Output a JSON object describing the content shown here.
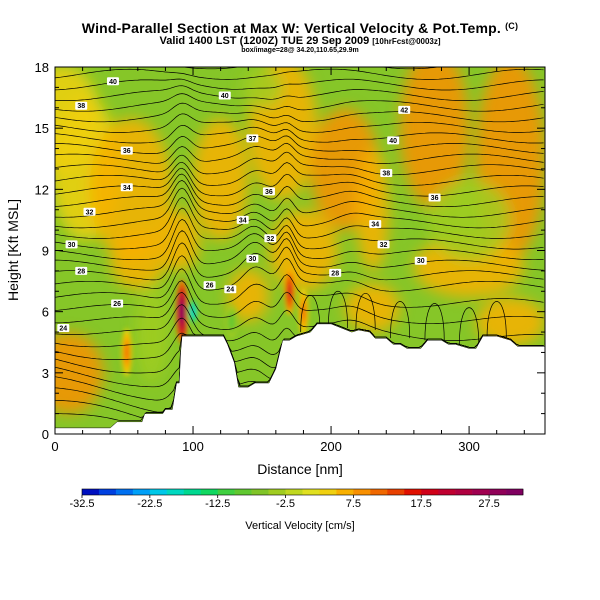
{
  "titles": {
    "main": "Wind-Parallel Section at Max W: Vertical Velocity & Pot.Temp.",
    "copyright": "(C)",
    "valid": "Valid 1400 LST (1200Z) TUE 29 Sep 2009",
    "forecast": "[10hrFcst@0003z]",
    "location": "box/image=28@ 34.20,110.65,29.9m"
  },
  "chart_data": {
    "type": "heatmap",
    "subtype": "vertical cross-section with isentropes",
    "xlabel": "Distance [nm]",
    "ylabel": "Height [Kft MSL]",
    "xlim": [
      0,
      355
    ],
    "ylim": [
      0,
      18
    ],
    "x_ticks": [
      0,
      100,
      200,
      300
    ],
    "y_ticks": [
      0,
      3,
      6,
      9,
      12,
      15,
      18
    ],
    "x_tick_labels": [
      "0",
      "100",
      "200",
      "300"
    ],
    "y_tick_labels": [
      "0",
      "3",
      "6",
      "9",
      "12",
      "15",
      "18"
    ],
    "colorbar": {
      "label": "Vertical Velocity [cm/s]",
      "min": -32.5,
      "max": 32.5,
      "step": 2.5,
      "tick_values": [
        -32.5,
        -22.5,
        -12.5,
        -2.5,
        7.5,
        17.5,
        27.5
      ],
      "tick_labels": [
        "-32.5",
        "-22.5",
        "-12.5",
        "-2.5",
        "7.5",
        "17.5",
        "27.5"
      ],
      "colors": [
        "#0010c0",
        "#0040e0",
        "#0070f0",
        "#00a0f8",
        "#00c8e8",
        "#00d8c0",
        "#00d890",
        "#10d860",
        "#40d040",
        "#60c830",
        "#80c428",
        "#a0cc20",
        "#c0d820",
        "#e0e020",
        "#f0d010",
        "#f8b000",
        "#f89000",
        "#f06800",
        "#e84000",
        "#e01000",
        "#d00018",
        "#c00030",
        "#b00040",
        "#a00050",
        "#900058",
        "#800060"
      ]
    },
    "terrain": [
      [
        0,
        0.3
      ],
      [
        40,
        0.3
      ],
      [
        45,
        0.6
      ],
      [
        63,
        0.6
      ],
      [
        65,
        1.0
      ],
      [
        78,
        1.0
      ],
      [
        80,
        1.2
      ],
      [
        85,
        1.2
      ],
      [
        88,
        2.5
      ],
      [
        90,
        2.5
      ],
      [
        91,
        4.0
      ],
      [
        92,
        4.8
      ],
      [
        122,
        4.8
      ],
      [
        125,
        4.4
      ],
      [
        130,
        3.5
      ],
      [
        133,
        2.3
      ],
      [
        140,
        2.3
      ],
      [
        145,
        2.5
      ],
      [
        155,
        2.5
      ],
      [
        160,
        3.2
      ],
      [
        165,
        4.6
      ],
      [
        170,
        4.6
      ],
      [
        175,
        4.8
      ],
      [
        185,
        5.0
      ],
      [
        190,
        5.4
      ],
      [
        200,
        5.4
      ],
      [
        215,
        5.0
      ],
      [
        220,
        5.1
      ],
      [
        228,
        5.0
      ],
      [
        232,
        4.7
      ],
      [
        240,
        4.7
      ],
      [
        245,
        4.4
      ],
      [
        250,
        4.4
      ],
      [
        255,
        4.2
      ],
      [
        265,
        4.2
      ],
      [
        270,
        4.6
      ],
      [
        280,
        4.6
      ],
      [
        285,
        4.4
      ],
      [
        290,
        4.4
      ],
      [
        300,
        4.2
      ],
      [
        305,
        4.2
      ],
      [
        310,
        4.8
      ],
      [
        320,
        4.8
      ],
      [
        330,
        4.6
      ],
      [
        335,
        4.3
      ],
      [
        355,
        4.3
      ]
    ],
    "isentrope_labels": [
      {
        "value": "40",
        "x": 42,
        "y": 17.3
      },
      {
        "value": "38",
        "x": 19,
        "y": 16.1
      },
      {
        "value": "36",
        "x": 52,
        "y": 13.9
      },
      {
        "value": "34",
        "x": 52,
        "y": 12.1
      },
      {
        "value": "32",
        "x": 25,
        "y": 10.9
      },
      {
        "value": "30",
        "x": 12,
        "y": 9.3
      },
      {
        "value": "28",
        "x": 19,
        "y": 8.0
      },
      {
        "value": "26",
        "x": 45,
        "y": 6.4
      },
      {
        "value": "24",
        "x": 6,
        "y": 5.2
      },
      {
        "value": "40",
        "x": 123,
        "y": 16.6
      },
      {
        "value": "37",
        "x": 143,
        "y": 14.5
      },
      {
        "value": "36",
        "x": 155,
        "y": 11.9
      },
      {
        "value": "34",
        "x": 136,
        "y": 10.5
      },
      {
        "value": "32",
        "x": 156,
        "y": 9.6
      },
      {
        "value": "30",
        "x": 143,
        "y": 8.6
      },
      {
        "value": "26",
        "x": 112,
        "y": 7.3
      },
      {
        "value": "24",
        "x": 127,
        "y": 7.1
      },
      {
        "value": "28",
        "x": 203,
        "y": 7.9
      },
      {
        "value": "42",
        "x": 253,
        "y": 15.9
      },
      {
        "value": "40",
        "x": 245,
        "y": 14.4
      },
      {
        "value": "38",
        "x": 240,
        "y": 12.8
      },
      {
        "value": "36",
        "x": 275,
        "y": 11.6
      },
      {
        "value": "34",
        "x": 232,
        "y": 10.3
      },
      {
        "value": "32",
        "x": 238,
        "y": 9.3
      },
      {
        "value": "30",
        "x": 265,
        "y": 8.5
      }
    ],
    "updraft_cores": [
      {
        "x": 92,
        "y": 6.0,
        "w_max": 30
      },
      {
        "x": 170,
        "y": 7.0,
        "w_max": 17.5
      },
      {
        "x": 52,
        "y": 4.0,
        "w_max": 12
      },
      {
        "x": 180,
        "y": 6.0,
        "w_max": 10
      }
    ],
    "downdraft_cores": [
      {
        "x": 100,
        "y": 6.0,
        "w_min": -20
      },
      {
        "x": 128,
        "y": 5.5,
        "w_min": -8
      }
    ]
  }
}
